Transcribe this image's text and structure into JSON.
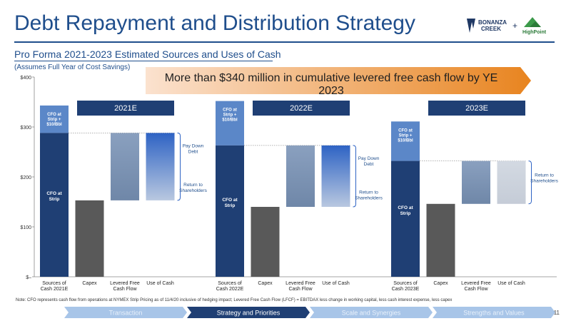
{
  "header": {
    "title": "Debt Repayment and Distribution Strategy",
    "subtitle": "Pro Forma 2021-2023 Estimated Sources and Uses of Cash",
    "assumption": "(Assumes Full Year of Cost Savings)",
    "banner": "More than $340 million in cumulative levered free cash flow by YE 2023",
    "logo_left": [
      "BONANZA",
      "CREEK"
    ],
    "logo_plus": "+",
    "logo_right": "HighPoint"
  },
  "chart_data": {
    "type": "bar",
    "ylim": [
      0,
      400
    ],
    "yticks": [
      0,
      100,
      200,
      300,
      400
    ],
    "ytick_labels": [
      "$–",
      "$100",
      "$200",
      "$300",
      "$400"
    ],
    "categories": [
      "Sources of Cash 2021E",
      "Capex",
      "Levered Free Cash Flow",
      "Use of Cash",
      "Sources of Cash 2022E",
      "Capex",
      "Levered Free Cash Flow",
      "Use of Cash",
      "Sources of Cash 2023E",
      "Capex",
      "Levered Free Cash Flow",
      "Use of Cash"
    ],
    "category_labels": [
      [
        "Sources of",
        "Cash 2021E"
      ],
      [
        "Capex"
      ],
      [
        "Levered Free",
        "Cash Flow"
      ],
      [
        "Use of Cash"
      ],
      [
        "Sources of",
        "Cash 2022E"
      ],
      [
        "Capex"
      ],
      [
        "Levered Free",
        "Cash Flow"
      ],
      [
        "Use of Cash"
      ],
      [
        "Sources of",
        "Cash 2023E"
      ],
      [
        "Capex"
      ],
      [
        "Levered Free",
        "Cash Flow"
      ],
      [
        "Use of Cash"
      ]
    ],
    "years": [
      {
        "label": "2021E",
        "cfo_strip": 288,
        "cfo_10": 343,
        "capex": 153,
        "lfcf": [
          153,
          288
        ],
        "use_pay_down": [
          210,
          288
        ],
        "use_return": [
          153,
          210
        ],
        "use_labels": [
          [
            "Pay Down",
            "Debt"
          ],
          [
            "Return to",
            "Shareholders"
          ]
        ]
      },
      {
        "label": "2022E",
        "cfo_strip": 263,
        "cfo_10": 352,
        "capex": 140,
        "lfcf": [
          140,
          263
        ],
        "use_pay_down": [
          195,
          263
        ],
        "use_return": [
          140,
          195
        ],
        "use_labels": [
          [
            "Pay Down",
            "Debt"
          ],
          [
            "Return to",
            "Shareholders"
          ]
        ]
      },
      {
        "label": "2023E",
        "cfo_strip": 232,
        "cfo_10": 311,
        "capex": 146,
        "lfcf": [
          146,
          232
        ],
        "use_pay_down": null,
        "use_return": [
          146,
          232
        ],
        "use_labels": [
          [
            "Return to",
            "Shareholders"
          ]
        ]
      }
    ],
    "segment_labels": {
      "strip": [
        "CFO at",
        "Strip"
      ],
      "ten": [
        "CFO at",
        "Strip +",
        "$10/Bbl"
      ]
    },
    "colors": {
      "strip": "#1f3f74",
      "ten": "#5b87c8",
      "capex": "#595959",
      "lfcf_top": "#8aa0bf",
      "lfcf_bottom": "#6f87a8",
      "paydown_top": "#2e63c4",
      "paydown_bottom": "#b9c8e0",
      "return_light": "#c5ccd7",
      "year_box": "#1f3f74"
    }
  },
  "footnote": "Note: CFO represents cash flow from operations at NYMEX Strip Pricing as of 11/4/20 inclusive of hedging impact; Levered Free Cash Flow (LFCF) = EBITDAX less change in working capital, less cash interest expense, less capex",
  "nav": {
    "tabs": [
      "Transaction",
      "Strategy and Priorities",
      "Scale and Synergies",
      "Strengths and Values"
    ],
    "active": 1
  },
  "page_number": "11"
}
